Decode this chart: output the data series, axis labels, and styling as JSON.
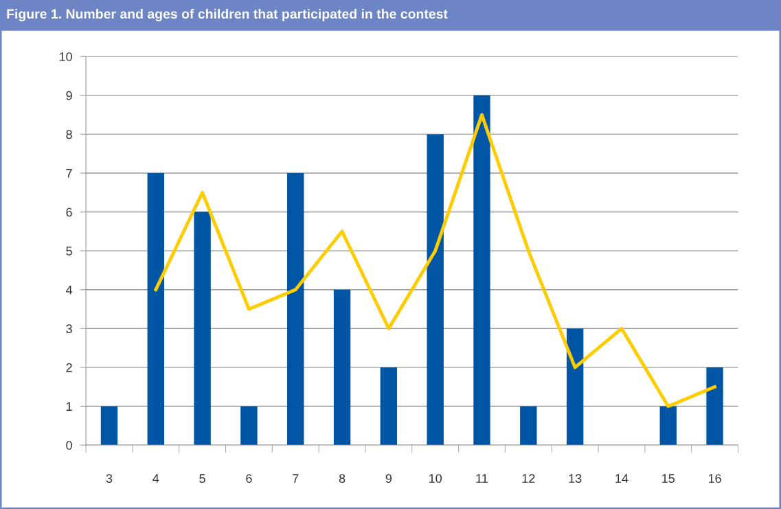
{
  "chart_data": {
    "type": "bar",
    "title": "Figure 1. Number and ages of children that participated in the contest",
    "categories": [
      "3",
      "4",
      "5",
      "6",
      "7",
      "8",
      "9",
      "10",
      "11",
      "12",
      "13",
      "14",
      "15",
      "16"
    ],
    "series": [
      {
        "color": "#0055a4",
        "values": [
          1,
          7,
          6,
          1,
          7,
          4,
          2,
          8,
          9,
          1,
          3,
          0,
          1,
          2
        ]
      },
      {
        "type": "line",
        "color": "#ffcc00",
        "values": [
          null,
          4,
          6.5,
          3.5,
          4,
          5.5,
          3,
          5,
          8.5,
          5,
          2,
          3,
          1,
          1.5
        ]
      }
    ],
    "ylim": [
      0,
      10
    ],
    "yticks": [
      0,
      1,
      2,
      3,
      4,
      5,
      6,
      7,
      8,
      9,
      10
    ],
    "grid": "y",
    "legend": false,
    "marker": "none",
    "line_style": "solid"
  }
}
